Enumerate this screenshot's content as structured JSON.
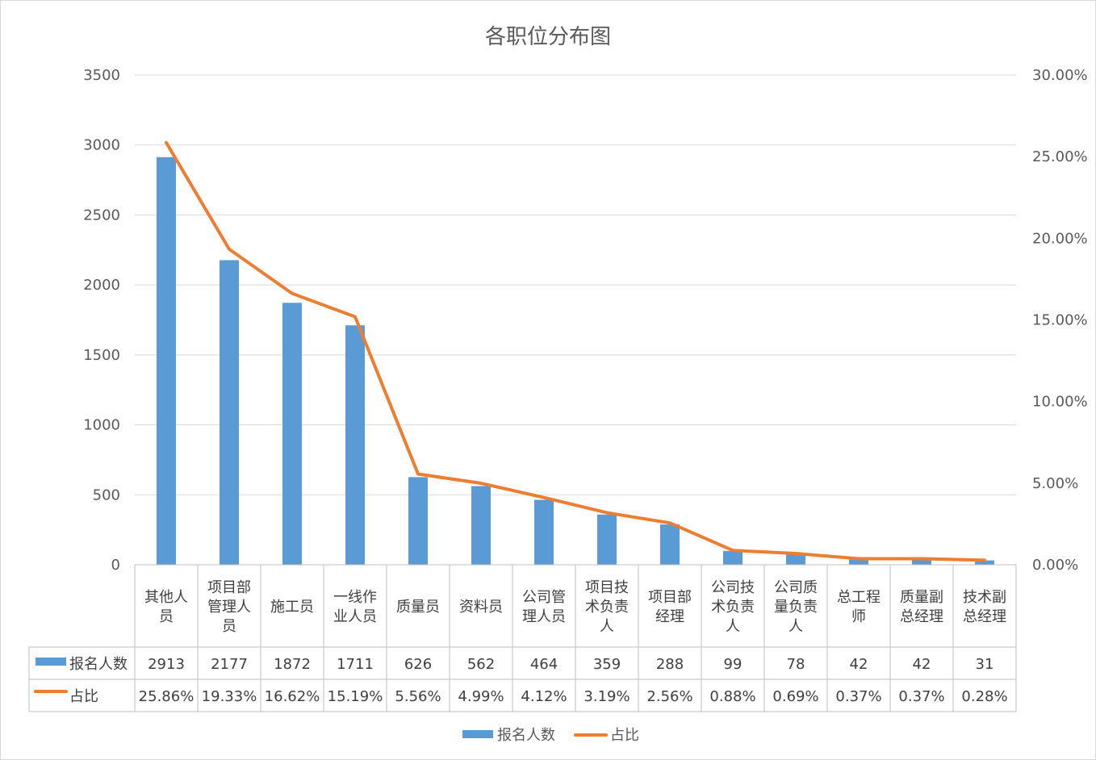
{
  "chart_data": {
    "type": "bar",
    "title": "各职位分布图",
    "categories": [
      [
        "其他人",
        "员"
      ],
      [
        "项目部",
        "管理人",
        "员"
      ],
      [
        "施工员"
      ],
      [
        "一线作",
        "业人员"
      ],
      [
        "质量员"
      ],
      [
        "资料员"
      ],
      [
        "公司管",
        "理人员"
      ],
      [
        "项目技",
        "术负责",
        "人"
      ],
      [
        "项目部",
        "经理"
      ],
      [
        "公司技",
        "术负责",
        "人"
      ],
      [
        "公司质",
        "量负责",
        "人"
      ],
      [
        "总工程",
        "师"
      ],
      [
        "质量副",
        "总经理"
      ],
      [
        "技术副",
        "总经理"
      ]
    ],
    "series": [
      {
        "name": "报名人数",
        "type": "bar",
        "axis": "left",
        "color": "#5b9bd5",
        "values": [
          2913,
          2177,
          1872,
          1711,
          626,
          562,
          464,
          359,
          288,
          99,
          78,
          42,
          42,
          31
        ]
      },
      {
        "name": "占比",
        "type": "line",
        "axis": "right",
        "color": "#ed7d31",
        "values": [
          25.86,
          19.33,
          16.62,
          15.19,
          5.56,
          4.99,
          4.12,
          3.19,
          2.56,
          0.88,
          0.69,
          0.37,
          0.37,
          0.28
        ],
        "labels": [
          "25.86%",
          "19.33%",
          "16.62%",
          "15.19%",
          "5.56%",
          "4.99%",
          "4.12%",
          "3.19%",
          "2.56%",
          "0.88%",
          "0.69%",
          "0.37%",
          "0.37%",
          "0.28%"
        ]
      }
    ],
    "y_left": {
      "ylim": [
        0,
        3500
      ],
      "ticks": [
        "0",
        "500",
        "1000",
        "1500",
        "2000",
        "2500",
        "3000",
        "3500"
      ]
    },
    "y_right": {
      "ylim": [
        0,
        30
      ],
      "ticks": [
        "0.00%",
        "5.00%",
        "10.00%",
        "15.00%",
        "20.00%",
        "25.00%",
        "30.00%"
      ]
    },
    "grid": true,
    "data_table": true,
    "legend": {
      "position": "bottom",
      "items": [
        "报名人数",
        "占比"
      ]
    }
  }
}
